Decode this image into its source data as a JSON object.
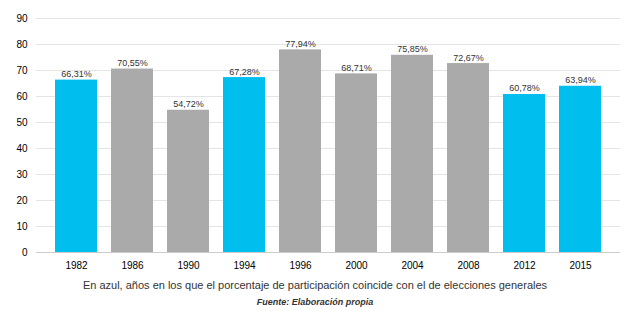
{
  "chart_data": {
    "type": "bar",
    "categories": [
      "1982",
      "1986",
      "1990",
      "1994",
      "1996",
      "2000",
      "2004",
      "2008",
      "2012",
      "2015"
    ],
    "values": [
      66.31,
      70.55,
      54.72,
      67.28,
      77.94,
      68.71,
      75.85,
      72.67,
      60.78,
      63.94
    ],
    "value_labels": [
      "66,31%",
      "70,55%",
      "54,72%",
      "67,28%",
      "77,94%",
      "68,71%",
      "75,85%",
      "72,67%",
      "60,78%",
      "63,94%"
    ],
    "colors": [
      "#00BFEF",
      "#AAAAAA",
      "#AAAAAA",
      "#00BFEF",
      "#AAAAAA",
      "#AAAAAA",
      "#AAAAAA",
      "#AAAAAA",
      "#00BFEF",
      "#00BFEF"
    ],
    "ylim": [
      0,
      90
    ],
    "yticks": [
      0,
      10,
      20,
      30,
      40,
      50,
      60,
      70,
      80,
      90
    ],
    "grid": true,
    "data_labels": true,
    "caption": "En azul, años en los que el porcentaje de participación coincide con el de elecciones generales",
    "source": "Fuente: Elaboración propia"
  }
}
